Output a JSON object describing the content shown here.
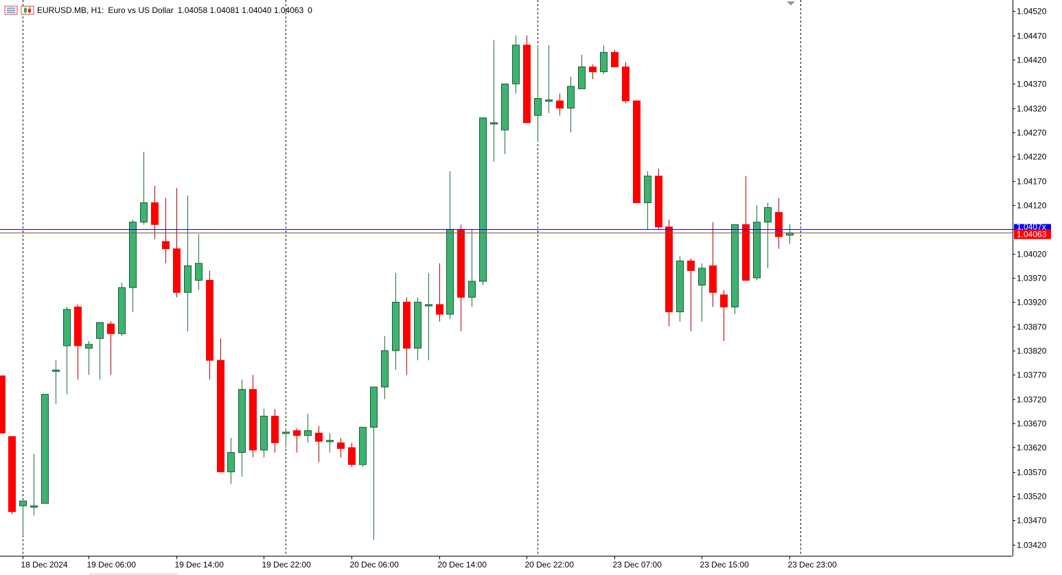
{
  "info": {
    "symbol": "EURUSD.MB, H1:",
    "description": "Euro vs US Dollar",
    "ohlc": "1.04058 1.04081 1.04040 1.04063",
    "volume": "0"
  },
  "icons": {
    "toolbar_left": "chart-properties-icon",
    "toolbar_right": "candles-icon",
    "shift_marker": "chart-shift-marker-icon"
  },
  "colors": {
    "bull": "#3cb371",
    "bear": "#ff0000",
    "ask_line": "#0000ff",
    "bid_line": "#ff0000",
    "price_label_bg": "#ff0000",
    "ask_label_bg": "#0000ff",
    "grid": "#000000",
    "axis_text": "#000000"
  },
  "price_labels": {
    "bid": "1.04063",
    "ask": "1.0407x"
  },
  "chart_data": {
    "type": "candlestick",
    "title": "",
    "timeframe": "H1",
    "ylim": [
      1.03397,
      1.04543
    ],
    "yticks": [
      "1.04520",
      "1.04470",
      "1.04420",
      "1.04370",
      "1.04320",
      "1.04270",
      "1.04220",
      "1.04170",
      "1.04120",
      "1.04070",
      "1.04020",
      "1.03970",
      "1.03920",
      "1.03870",
      "1.03820",
      "1.03770",
      "1.03720",
      "1.03670",
      "1.03620",
      "1.03570",
      "1.03520",
      "1.03470",
      "1.03420"
    ],
    "xtick_labels": [
      "18 Dec 2024",
      "19 Dec 06:00",
      "19 Dec 14:00",
      "19 Dec 22:00",
      "20 Dec 06:00",
      "20 Dec 14:00",
      "20 Dec 22:00",
      "23 Dec 07:00",
      "23 Dec 15:00",
      "23 Dec 23:00"
    ],
    "xtick_bar_index": [
      2,
      8,
      16,
      24,
      32,
      40,
      48,
      56,
      64,
      72
    ],
    "period_separator_bar_index": [
      2,
      26,
      49,
      73
    ],
    "bid": 1.04063,
    "ask": 1.0407,
    "candles": [
      [
        1.03768,
        1.03768,
        1.0365,
        1.0365
      ],
      [
        1.03643,
        1.03643,
        1.03483,
        1.03488
      ],
      [
        1.035,
        1.0351,
        1.03438,
        1.0351
      ],
      [
        1.035,
        1.03607,
        1.0348,
        1.035
      ],
      [
        1.03505,
        1.0373,
        1.03505,
        1.0373
      ],
      [
        1.0378,
        1.038,
        1.0371,
        1.0378
      ],
      [
        1.0383,
        1.0391,
        1.0373,
        1.03905
      ],
      [
        1.0391,
        1.03915,
        1.0376,
        1.0383
      ],
      [
        1.03825,
        1.0384,
        1.0377,
        1.03833
      ],
      [
        1.03845,
        1.0387,
        1.0376,
        1.03878
      ],
      [
        1.03875,
        1.0388,
        1.0377,
        1.03855
      ],
      [
        1.03855,
        1.0396,
        1.0385,
        1.0395
      ],
      [
        1.0395,
        1.0409,
        1.039,
        1.04085
      ],
      [
        1.04085,
        1.0423,
        1.0408,
        1.04125
      ],
      [
        1.04125,
        1.0416,
        1.0405,
        1.0408
      ],
      [
        1.04045,
        1.04135,
        1.04,
        1.0403
      ],
      [
        1.0403,
        1.04155,
        1.0393,
        1.0394
      ],
      [
        1.0394,
        1.0414,
        1.0386,
        1.03995
      ],
      [
        1.03965,
        1.0406,
        1.03945,
        1.04
      ],
      [
        1.03965,
        1.03985,
        1.0376,
        1.038
      ],
      [
        1.038,
        1.03845,
        1.0357,
        1.0357
      ],
      [
        1.0357,
        1.0364,
        1.03545,
        1.0361
      ],
      [
        1.0361,
        1.0376,
        1.0356,
        1.0374
      ],
      [
        1.0374,
        1.0377,
        1.036,
        1.03615
      ],
      [
        1.03615,
        1.037,
        1.036,
        1.03685
      ],
      [
        1.03685,
        1.037,
        1.0361,
        1.0363
      ],
      [
        1.0365,
        1.0366,
        1.0362,
        1.03652
      ],
      [
        1.03655,
        1.0366,
        1.0361,
        1.03645
      ],
      [
        1.03645,
        1.0369,
        1.0363,
        1.03655
      ],
      [
        1.0365,
        1.03665,
        1.0359,
        1.03633
      ],
      [
        1.03633,
        1.0365,
        1.0361,
        1.03635
      ],
      [
        1.0363,
        1.0364,
        1.036,
        1.03618
      ],
      [
        1.0362,
        1.0363,
        1.0358,
        1.03585
      ],
      [
        1.03585,
        1.0366,
        1.0358,
        1.03662
      ],
      [
        1.03662,
        1.03745,
        1.0343,
        1.03745
      ],
      [
        1.03745,
        1.0385,
        1.0372,
        1.0382
      ],
      [
        1.0382,
        1.0398,
        1.0378,
        1.0392
      ],
      [
        1.0392,
        1.0393,
        1.0377,
        1.03825
      ],
      [
        1.03825,
        1.0393,
        1.038,
        1.0392
      ],
      [
        1.03915,
        1.0398,
        1.038,
        1.03915
      ],
      [
        1.03915,
        1.04,
        1.0388,
        1.03895
      ],
      [
        1.03895,
        1.0419,
        1.03885,
        1.0407
      ],
      [
        1.0407,
        1.0408,
        1.0386,
        1.0393
      ],
      [
        1.0393,
        1.0407,
        1.0391,
        1.03963
      ],
      [
        1.03963,
        1.04295,
        1.03955,
        1.043
      ],
      [
        1.0429,
        1.0446,
        1.0421,
        1.0429
      ],
      [
        1.04275,
        1.0437,
        1.04225,
        1.0437
      ],
      [
        1.0437,
        1.0447,
        1.0435,
        1.0445
      ],
      [
        1.0445,
        1.0447,
        1.0429,
        1.0429
      ],
      [
        1.04305,
        1.0445,
        1.0425,
        1.0434
      ],
      [
        1.04335,
        1.0445,
        1.0431,
        1.04337
      ],
      [
        1.04335,
        1.0435,
        1.04305,
        1.0432
      ],
      [
        1.0432,
        1.04385,
        1.0427,
        1.04365
      ],
      [
        1.0436,
        1.0443,
        1.0436,
        1.04405
      ],
      [
        1.04405,
        1.0441,
        1.0438,
        1.04395
      ],
      [
        1.04395,
        1.0445,
        1.0439,
        1.04435
      ],
      [
        1.04435,
        1.0444,
        1.04405,
        1.04405
      ],
      [
        1.04405,
        1.04415,
        1.0433,
        1.04335
      ],
      [
        1.04335,
        1.0433,
        1.04125,
        1.04125
      ],
      [
        1.04125,
        1.0419,
        1.0407,
        1.0418
      ],
      [
        1.0418,
        1.04195,
        1.0407,
        1.04075
      ],
      [
        1.04075,
        1.0409,
        1.0387,
        1.039
      ],
      [
        1.039,
        1.04015,
        1.0388,
        1.04005
      ],
      [
        1.04005,
        1.0401,
        1.0386,
        1.03985
      ],
      [
        1.03955,
        1.04,
        1.0388,
        1.0399
      ],
      [
        1.03995,
        1.04085,
        1.0391,
        1.0394
      ],
      [
        1.03935,
        1.03945,
        1.0384,
        1.0391
      ],
      [
        1.0391,
        1.0408,
        1.03895,
        1.0408
      ],
      [
        1.0408,
        1.0418,
        1.0397,
        1.03965
      ],
      [
        1.0397,
        1.0412,
        1.03965,
        1.04085
      ],
      [
        1.04085,
        1.04125,
        1.0399,
        1.04115
      ],
      [
        1.04105,
        1.04135,
        1.0403,
        1.04055
      ],
      [
        1.04058,
        1.04081,
        1.0404,
        1.04063
      ]
    ]
  }
}
